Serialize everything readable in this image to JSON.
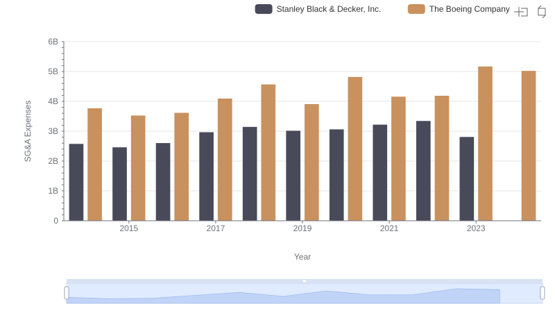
{
  "chart_data": {
    "type": "bar",
    "categories": [
      "2014",
      "2015",
      "2016",
      "2017",
      "2018",
      "2019",
      "2020",
      "2021",
      "2022",
      "2023",
      "2024"
    ],
    "x_tick_labels": [
      "2015",
      "2017",
      "2019",
      "2021",
      "2023"
    ],
    "xlabel": "Year",
    "ylabel": "SG&A Expenses",
    "ylim": [
      0,
      6000000000
    ],
    "y_tick_labels": [
      "0",
      "1B",
      "2B",
      "3B",
      "4B",
      "5B",
      "6B"
    ],
    "series": [
      {
        "name": "Stanley Black & Decker, Inc.",
        "color": "#484a5a",
        "values": [
          2575000000,
          2460000000,
          2602000000,
          2965000000,
          3144000000,
          3015000000,
          3061000000,
          3219000000,
          3343000000,
          2807000000,
          null
        ]
      },
      {
        "name": "The Boeing Company",
        "color": "#c9915e",
        "values": [
          3767000000,
          3525000000,
          3616000000,
          4094000000,
          4567000000,
          3909000000,
          4817000000,
          4157000000,
          4187000000,
          5168000000,
          5021000000
        ]
      }
    ],
    "grid": true,
    "legend_position": "top-right",
    "data_zoom": {
      "visible": true,
      "range_percent": [
        0,
        100
      ]
    }
  },
  "toolbar": {
    "icons": [
      "zoom-icon",
      "restore-icon"
    ]
  }
}
